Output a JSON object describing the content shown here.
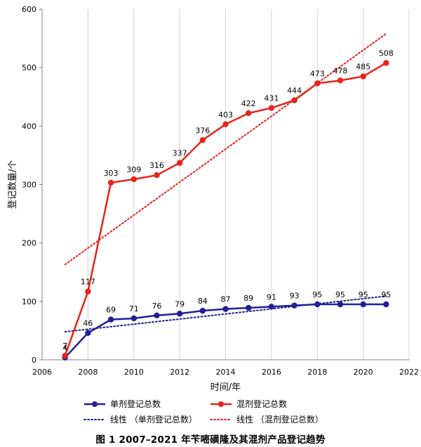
{
  "chart_data": {
    "type": "line",
    "xlabel": "时间/年",
    "ylabel": "登记数量/个",
    "xlim": [
      2006,
      2022
    ],
    "ylim": [
      0,
      600
    ],
    "xticks": [
      2006,
      2008,
      2010,
      2012,
      2014,
      2016,
      2018,
      2020,
      2022
    ],
    "yticks": [
      0,
      100,
      200,
      300,
      400,
      500,
      600
    ],
    "grid": "vertical",
    "legend_position": "bottom",
    "x": [
      2007,
      2008,
      2009,
      2010,
      2011,
      2012,
      2013,
      2014,
      2015,
      2016,
      2017,
      2018,
      2019,
      2020,
      2021
    ],
    "series": [
      {
        "name": "单剂登记总数",
        "color": "#1F1F96",
        "values": [
          4,
          46,
          69,
          71,
          76,
          79,
          84,
          87,
          89,
          91,
          93,
          95,
          95,
          95,
          95
        ],
        "labels": [
          "4",
          "46",
          "69",
          "71",
          "76",
          "79",
          "84",
          "87",
          "89",
          "91",
          "93",
          "95",
          "95",
          "95",
          "95"
        ]
      },
      {
        "name": "混剂登记总数",
        "color": "#E8231C",
        "values": [
          7,
          117,
          303,
          309,
          316,
          337,
          376,
          403,
          422,
          431,
          444,
          473,
          478,
          485,
          508
        ],
        "labels": [
          "7",
          "117",
          "303",
          "309",
          "316",
          "337",
          "376",
          "403",
          "422",
          "431",
          "444",
          "473",
          "478",
          "485",
          "508"
        ]
      }
    ],
    "trendlines": [
      {
        "name": "线性 （单剂登记总数）",
        "color": "#1F1F96",
        "values_at_ends": [
          48,
          109
        ]
      },
      {
        "name": "线性 （混剂登记总数）",
        "color": "#E8231C",
        "values_at_ends": [
          163,
          558
        ]
      }
    ]
  },
  "caption": "图 1 2007–2021 年苄嘧磺隆及其混剂产品登记趋势"
}
